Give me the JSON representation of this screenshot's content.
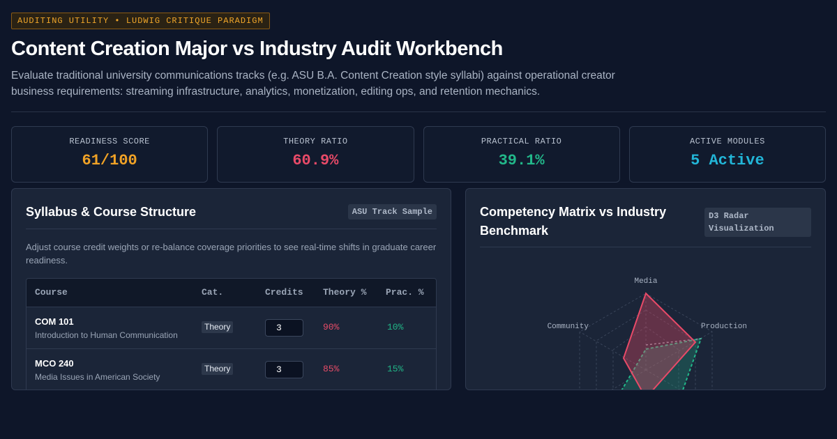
{
  "header": {
    "tag": "AUDITING UTILITY • LUDWIG CRITIQUE PARADIGM",
    "title": "Content Creation Major vs Industry Audit Workbench",
    "subtitle": "Evaluate traditional university communications tracks (e.g. ASU B.A. Content Creation style syllabi) against operational creator business requirements: streaming infrastructure, analytics, monetization, editing ops, and retention mechanics."
  },
  "stats": [
    {
      "label": "READINESS SCORE",
      "value": "61/100",
      "color": "#f0a226"
    },
    {
      "label": "THEORY RATIO",
      "value": "60.9%",
      "color": "#e84a68"
    },
    {
      "label": "PRACTICAL RATIO",
      "value": "39.1%",
      "color": "#22b88a"
    },
    {
      "label": "ACTIVE MODULES",
      "value": "5 Active",
      "color": "#22b6d8"
    }
  ],
  "syllabus": {
    "title": "Syllabus & Course Structure",
    "chip": "ASU Track Sample",
    "description": "Adjust course credit weights or re-balance coverage priorities to see real-time shifts in graduate career readiness.",
    "columns": {
      "course": "Course",
      "cat": "Cat.",
      "credits": "Credits",
      "theory": "Theory %",
      "prac": "Prac. %"
    },
    "rows": [
      {
        "code": "COM 101",
        "name": "Introduction to Human Communication",
        "cat": "Theory",
        "credits": "3",
        "theory": "90%",
        "prac": "10%"
      },
      {
        "code": "MCO 240",
        "name": "Media Issues in American Society",
        "cat": "Theory",
        "credits": "3",
        "theory": "85%",
        "prac": "15%"
      }
    ]
  },
  "competency": {
    "title": "Competency Matrix vs Industry Benchmark",
    "chip": "D3 Radar Visualization",
    "axes": [
      "Media",
      "Production",
      "Community"
    ],
    "colors": {
      "curriculum": "#e84a68",
      "benchmark": "#22b88a"
    }
  }
}
